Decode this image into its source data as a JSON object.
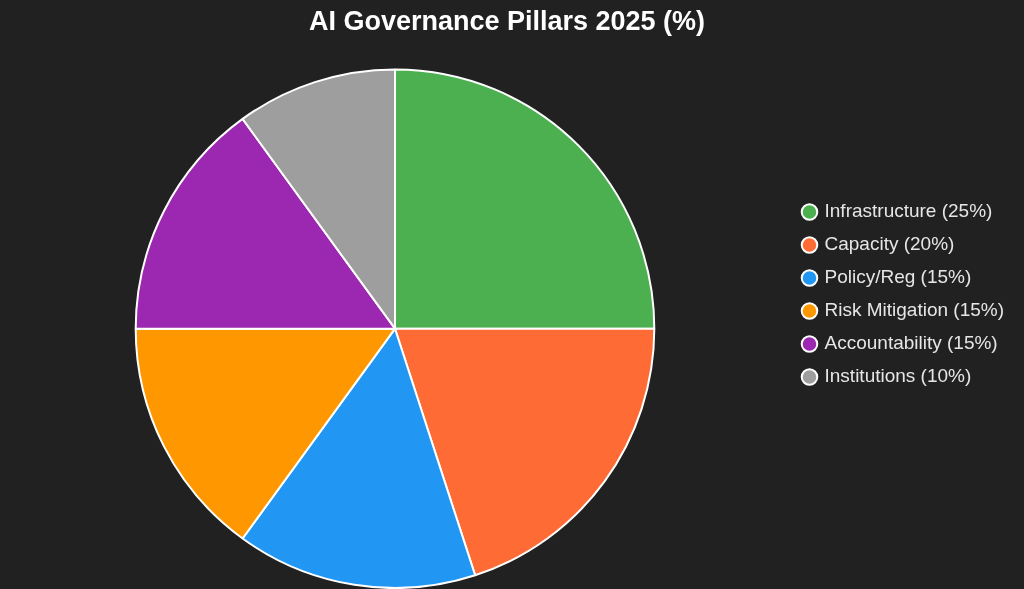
{
  "chart_data": {
    "type": "pie",
    "title": "AI Governance Pillars 2025 (%)",
    "categories": [
      "Infrastructure (25%)",
      "Capacity (20%)",
      "Policy/Reg (15%)",
      "Risk Mitigation (15%)",
      "Accountability (15%)",
      "Institutions (10%)"
    ],
    "values": [
      25,
      20,
      15,
      15,
      15,
      10
    ],
    "colors": [
      "#4caf50",
      "#ff6b35",
      "#2196f3",
      "#ff9800",
      "#9c27b0",
      "#9e9e9e"
    ],
    "legend": "right"
  }
}
